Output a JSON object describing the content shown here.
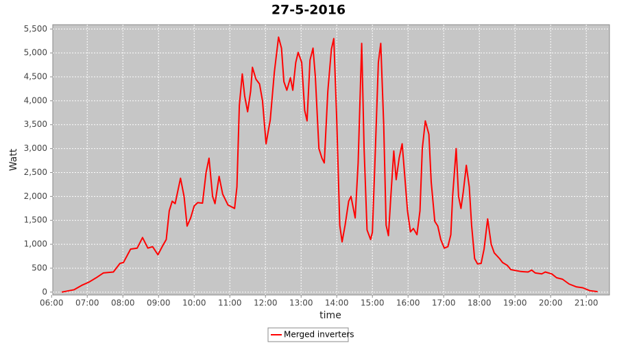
{
  "chart_data": {
    "type": "line",
    "title": "27-5-2016",
    "x_label": "time",
    "y_label": "Watt",
    "x": [
      "06:17",
      "06:38",
      "06:52",
      "07:03",
      "07:15",
      "07:27",
      "07:44",
      "07:55",
      "08:01",
      "08:13",
      "08:24",
      "08:33",
      "08:42",
      "08:50",
      "08:59",
      "09:07",
      "09:13",
      "09:18",
      "09:23",
      "09:28",
      "09:37",
      "09:43",
      "09:48",
      "09:54",
      "10:00",
      "10:06",
      "10:14",
      "10:20",
      "10:25",
      "10:31",
      "10:35",
      "10:42",
      "10:48",
      "10:57",
      "11:08",
      "11:12",
      "11:16",
      "11:21",
      "11:25",
      "11:30",
      "11:35",
      "11:38",
      "11:44",
      "11:50",
      "11:55",
      "12:01",
      "12:08",
      "12:15",
      "12:22",
      "12:27",
      "12:31",
      "12:36",
      "12:42",
      "12:46",
      "12:51",
      "12:55",
      "13:01",
      "13:06",
      "13:10",
      "13:15",
      "13:20",
      "13:24",
      "13:30",
      "13:35",
      "13:39",
      "13:45",
      "13:51",
      "13:55",
      "14:00",
      "14:05",
      "14:09",
      "14:14",
      "14:20",
      "14:24",
      "14:31",
      "14:36",
      "14:42",
      "14:46",
      "14:51",
      "14:57",
      "15:00",
      "15:05",
      "15:10",
      "15:14",
      "15:19",
      "15:23",
      "15:27",
      "15:31",
      "15:36",
      "15:40",
      "15:45",
      "15:50",
      "15:54",
      "15:59",
      "16:04",
      "16:09",
      "16:15",
      "16:20",
      "16:24",
      "16:29",
      "16:35",
      "16:39",
      "16:45",
      "16:50",
      "16:55",
      "17:01",
      "17:07",
      "17:12",
      "17:15",
      "17:21",
      "17:25",
      "17:29",
      "17:33",
      "17:38",
      "17:43",
      "17:47",
      "17:52",
      "17:57",
      "18:03",
      "18:08",
      "18:14",
      "18:20",
      "18:25",
      "18:34",
      "18:39",
      "18:47",
      "18:53",
      "19:10",
      "19:22",
      "19:28",
      "19:34",
      "19:45",
      "19:51",
      "20:02",
      "20:10",
      "20:20",
      "20:31",
      "20:43",
      "20:54",
      "21:06",
      "21:19"
    ],
    "series": [
      {
        "name": "Merged inverters",
        "color": "#ff0000",
        "values": [
          0,
          50,
          150,
          210,
          300,
          400,
          420,
          600,
          620,
          900,
          920,
          1140,
          920,
          950,
          780,
          970,
          1100,
          1700,
          1900,
          1850,
          2380,
          2000,
          1380,
          1550,
          1800,
          1870,
          1860,
          2500,
          2800,
          2000,
          1850,
          2420,
          2050,
          1820,
          1750,
          2200,
          3900,
          4560,
          4100,
          3770,
          4200,
          4700,
          4450,
          4350,
          4000,
          3100,
          3600,
          4600,
          5330,
          5100,
          4400,
          4220,
          4480,
          4220,
          4800,
          5010,
          4800,
          3800,
          3580,
          4850,
          5100,
          4500,
          3000,
          2800,
          2700,
          4200,
          5080,
          5300,
          3600,
          1400,
          1050,
          1400,
          1900,
          2000,
          1550,
          2700,
          5200,
          3000,
          1300,
          1100,
          1250,
          3000,
          4800,
          5200,
          3500,
          1400,
          1180,
          2000,
          2950,
          2350,
          2800,
          3100,
          2500,
          1700,
          1260,
          1330,
          1200,
          1700,
          3000,
          3580,
          3300,
          2300,
          1480,
          1380,
          1100,
          920,
          950,
          1200,
          2000,
          3000,
          2000,
          1750,
          2100,
          2650,
          2200,
          1400,
          700,
          590,
          600,
          900,
          1530,
          1000,
          820,
          700,
          620,
          560,
          470,
          430,
          420,
          460,
          400,
          380,
          420,
          380,
          300,
          270,
          170,
          110,
          90,
          30,
          10
        ]
      }
    ],
    "xlim": [
      "06:02",
      "21:39"
    ],
    "xticks": [
      "06:00",
      "07:00",
      "08:00",
      "09:00",
      "10:00",
      "11:00",
      "12:00",
      "13:00",
      "14:00",
      "15:00",
      "16:00",
      "17:00",
      "18:00",
      "19:00",
      "20:00",
      "21:00"
    ],
    "ylim": [
      -60,
      5590
    ],
    "yticks": [
      0,
      500,
      {
        "value": 1000,
        "label": "1,000"
      },
      {
        "value": 1500,
        "label": "1,500"
      },
      {
        "value": 2000,
        "label": "2,000"
      },
      {
        "value": 2500,
        "label": "2,500"
      },
      {
        "value": 3000,
        "label": "3,000"
      },
      {
        "value": 3500,
        "label": "3,500"
      },
      {
        "value": 4000,
        "label": "4,000"
      },
      {
        "value": 4500,
        "label": "4,500"
      },
      {
        "value": 5000,
        "label": "5,000"
      },
      {
        "value": 5500,
        "label": "5,500"
      }
    ],
    "grid": true,
    "legend": "bottom",
    "plot_background": "#c6c6c6"
  }
}
